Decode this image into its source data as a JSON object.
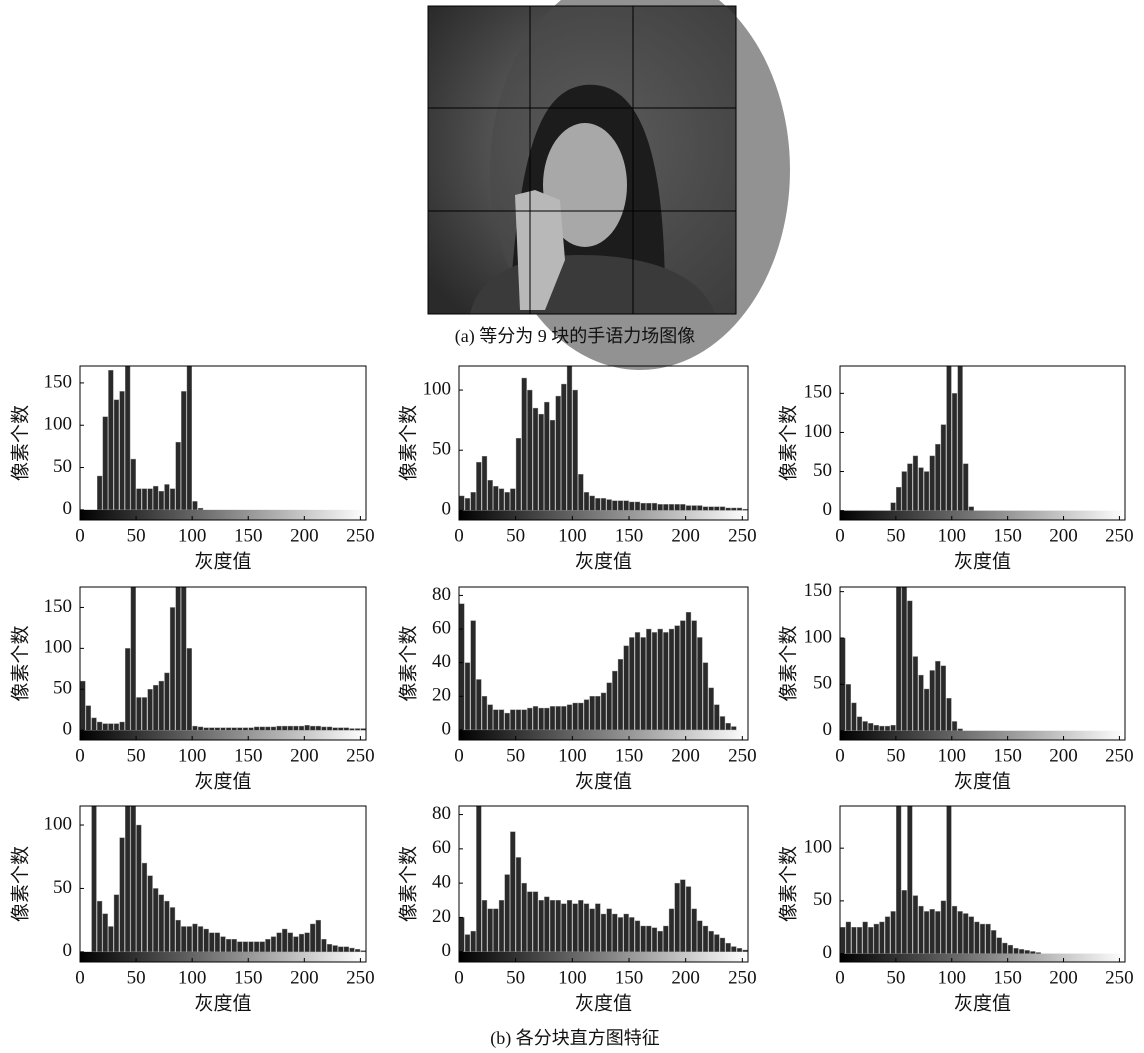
{
  "image_caption": "(a) 等分为 9 块的手语力场图像",
  "figure_caption": "(b) 各分块直方图特征",
  "chart_data": [
    {
      "type": "histogram",
      "ylabel": "像素个数",
      "xlabel": "灰度值",
      "color": "#2a2a2a",
      "xlim": [
        0,
        255
      ],
      "xticks": [
        0,
        50,
        100,
        150,
        200,
        250
      ],
      "ylim": [
        -12,
        170
      ],
      "yticks": [
        0,
        50,
        100,
        150
      ],
      "bins": [
        0,
        5,
        10,
        15,
        20,
        25,
        30,
        35,
        40,
        45,
        50,
        55,
        60,
        65,
        70,
        75,
        80,
        85,
        90,
        95,
        100,
        105,
        110,
        115,
        120,
        125,
        130,
        135,
        140,
        145,
        150,
        155,
        160,
        165,
        170,
        175,
        180,
        185,
        190,
        195,
        200,
        205,
        210,
        215,
        220,
        225,
        230,
        235,
        240,
        245,
        250,
        255
      ],
      "values": [
        0,
        0,
        0,
        40,
        110,
        165,
        130,
        140,
        170,
        60,
        25,
        25,
        25,
        28,
        22,
        30,
        25,
        80,
        140,
        170,
        10,
        2,
        0,
        0,
        0,
        0,
        0,
        0,
        0,
        0,
        0,
        0,
        0,
        0,
        0,
        0,
        0,
        0,
        0,
        0,
        0,
        0,
        0,
        0,
        0,
        0,
        0,
        0,
        0,
        0,
        0
      ]
    },
    {
      "type": "histogram",
      "ylabel": "像素个数",
      "xlabel": "灰度值",
      "color": "#2a2a2a",
      "xlim": [
        0,
        255
      ],
      "xticks": [
        0,
        50,
        100,
        150,
        200,
        250
      ],
      "ylim": [
        -8,
        120
      ],
      "yticks": [
        0,
        50,
        100
      ],
      "bins": [
        0,
        5,
        10,
        15,
        20,
        25,
        30,
        35,
        40,
        45,
        50,
        55,
        60,
        65,
        70,
        75,
        80,
        85,
        90,
        95,
        100,
        105,
        110,
        115,
        120,
        125,
        130,
        135,
        140,
        145,
        150,
        155,
        160,
        165,
        170,
        175,
        180,
        185,
        190,
        195,
        200,
        205,
        210,
        215,
        220,
        225,
        230,
        235,
        240,
        245,
        250,
        255
      ],
      "values": [
        12,
        10,
        15,
        40,
        45,
        25,
        20,
        18,
        15,
        18,
        60,
        110,
        100,
        85,
        80,
        90,
        75,
        95,
        105,
        120,
        100,
        30,
        15,
        12,
        10,
        10,
        9,
        8,
        8,
        8,
        7,
        7,
        6,
        6,
        6,
        5,
        5,
        5,
        5,
        5,
        4,
        4,
        4,
        3,
        3,
        3,
        3,
        2,
        2,
        2,
        1
      ]
    },
    {
      "type": "histogram",
      "ylabel": "像素个数",
      "xlabel": "灰度值",
      "color": "#2a2a2a",
      "xlim": [
        0,
        255
      ],
      "xticks": [
        0,
        50,
        100,
        150,
        200,
        250
      ],
      "ylim": [
        -12,
        185
      ],
      "yticks": [
        0,
        50,
        100,
        150
      ],
      "bins": [
        0,
        5,
        10,
        15,
        20,
        25,
        30,
        35,
        40,
        45,
        50,
        55,
        60,
        65,
        70,
        75,
        80,
        85,
        90,
        95,
        100,
        105,
        110,
        115,
        120,
        125,
        130,
        135,
        140,
        145,
        150,
        155,
        160,
        165,
        170,
        175,
        180,
        185,
        190,
        195,
        200,
        205,
        210,
        215,
        220,
        225,
        230,
        235,
        240,
        245,
        250,
        255
      ],
      "values": [
        0,
        0,
        0,
        0,
        0,
        0,
        0,
        0,
        0,
        10,
        30,
        50,
        60,
        70,
        55,
        50,
        70,
        85,
        110,
        185,
        150,
        185,
        60,
        5,
        0,
        0,
        0,
        0,
        0,
        0,
        0,
        0,
        0,
        0,
        0,
        0,
        0,
        0,
        0,
        0,
        0,
        0,
        0,
        0,
        0,
        0,
        0,
        0,
        0,
        0,
        0
      ]
    },
    {
      "type": "histogram",
      "ylabel": "像素个数",
      "xlabel": "灰度值",
      "color": "#2a2a2a",
      "xlim": [
        0,
        255
      ],
      "xticks": [
        0,
        50,
        100,
        150,
        200,
        250
      ],
      "ylim": [
        -12,
        175
      ],
      "yticks": [
        0,
        50,
        100,
        150
      ],
      "bins": [
        0,
        5,
        10,
        15,
        20,
        25,
        30,
        35,
        40,
        45,
        50,
        55,
        60,
        65,
        70,
        75,
        80,
        85,
        90,
        95,
        100,
        105,
        110,
        115,
        120,
        125,
        130,
        135,
        140,
        145,
        150,
        155,
        160,
        165,
        170,
        175,
        180,
        185,
        190,
        195,
        200,
        205,
        210,
        215,
        220,
        225,
        230,
        235,
        240,
        245,
        250,
        255
      ],
      "values": [
        60,
        30,
        15,
        10,
        8,
        8,
        8,
        10,
        100,
        175,
        40,
        40,
        50,
        55,
        60,
        70,
        150,
        175,
        175,
        100,
        5,
        4,
        3,
        3,
        3,
        3,
        3,
        3,
        3,
        3,
        3,
        4,
        4,
        4,
        4,
        5,
        5,
        5,
        5,
        5,
        6,
        5,
        5,
        4,
        4,
        3,
        3,
        3,
        2,
        2,
        2
      ]
    },
    {
      "type": "histogram",
      "ylabel": "像素个数",
      "xlabel": "灰度值",
      "color": "#2a2a2a",
      "xlim": [
        0,
        255
      ],
      "xticks": [
        0,
        50,
        100,
        150,
        200,
        250
      ],
      "ylim": [
        -6,
        85
      ],
      "yticks": [
        0,
        20,
        40,
        60,
        80
      ],
      "bins": [
        0,
        5,
        10,
        15,
        20,
        25,
        30,
        35,
        40,
        45,
        50,
        55,
        60,
        65,
        70,
        75,
        80,
        85,
        90,
        95,
        100,
        105,
        110,
        115,
        120,
        125,
        130,
        135,
        140,
        145,
        150,
        155,
        160,
        165,
        170,
        175,
        180,
        185,
        190,
        195,
        200,
        205,
        210,
        215,
        220,
        225,
        230,
        235,
        240,
        245,
        250,
        255
      ],
      "values": [
        75,
        40,
        65,
        30,
        20,
        15,
        12,
        12,
        10,
        12,
        12,
        12,
        13,
        14,
        13,
        13,
        14,
        14,
        14,
        15,
        16,
        16,
        18,
        20,
        20,
        22,
        28,
        35,
        42,
        50,
        55,
        58,
        55,
        60,
        58,
        60,
        58,
        60,
        62,
        65,
        70,
        65,
        55,
        40,
        25,
        15,
        8,
        4,
        2,
        0,
        0
      ]
    },
    {
      "type": "histogram",
      "ylabel": "像素个数",
      "xlabel": "灰度值",
      "color": "#2a2a2a",
      "xlim": [
        0,
        255
      ],
      "xticks": [
        0,
        50,
        100,
        150,
        200,
        250
      ],
      "ylim": [
        -10,
        155
      ],
      "yticks": [
        0,
        50,
        100,
        150
      ],
      "bins": [
        0,
        5,
        10,
        15,
        20,
        25,
        30,
        35,
        40,
        45,
        50,
        55,
        60,
        65,
        70,
        75,
        80,
        85,
        90,
        95,
        100,
        105,
        110,
        115,
        120,
        125,
        130,
        135,
        140,
        145,
        150,
        155,
        160,
        165,
        170,
        175,
        180,
        185,
        190,
        195,
        200,
        205,
        210,
        215,
        220,
        225,
        230,
        235,
        240,
        245,
        250,
        255
      ],
      "values": [
        100,
        50,
        30,
        15,
        10,
        8,
        6,
        5,
        5,
        6,
        155,
        155,
        140,
        80,
        60,
        45,
        65,
        75,
        70,
        35,
        10,
        2,
        0,
        0,
        0,
        0,
        0,
        0,
        0,
        0,
        0,
        0,
        0,
        0,
        0,
        0,
        0,
        0,
        0,
        0,
        0,
        0,
        0,
        0,
        0,
        0,
        0,
        0,
        0,
        0,
        0
      ]
    },
    {
      "type": "histogram",
      "ylabel": "像素个数",
      "xlabel": "灰度值",
      "color": "#2a2a2a",
      "xlim": [
        0,
        255
      ],
      "xticks": [
        0,
        50,
        100,
        150,
        200,
        250
      ],
      "ylim": [
        -8,
        115
      ],
      "yticks": [
        0,
        50,
        100
      ],
      "bins": [
        0,
        5,
        10,
        15,
        20,
        25,
        30,
        35,
        40,
        45,
        50,
        55,
        60,
        65,
        70,
        75,
        80,
        85,
        90,
        95,
        100,
        105,
        110,
        115,
        120,
        125,
        130,
        135,
        140,
        145,
        150,
        155,
        160,
        165,
        170,
        175,
        180,
        185,
        190,
        195,
        200,
        205,
        210,
        215,
        220,
        225,
        230,
        235,
        240,
        245,
        250,
        255
      ],
      "values": [
        0,
        0,
        115,
        40,
        30,
        20,
        45,
        90,
        115,
        115,
        100,
        70,
        60,
        50,
        45,
        40,
        35,
        25,
        20,
        20,
        22,
        20,
        18,
        15,
        15,
        12,
        10,
        10,
        8,
        8,
        8,
        8,
        8,
        10,
        12,
        15,
        18,
        15,
        12,
        14,
        15,
        22,
        25,
        10,
        6,
        5,
        4,
        4,
        3,
        2,
        1
      ]
    },
    {
      "type": "histogram",
      "ylabel": "像素个数",
      "xlabel": "灰度值",
      "color": "#2a2a2a",
      "xlim": [
        0,
        255
      ],
      "xticks": [
        0,
        50,
        100,
        150,
        200,
        250
      ],
      "ylim": [
        -6,
        85
      ],
      "yticks": [
        0,
        20,
        40,
        60,
        80
      ],
      "bins": [
        0,
        5,
        10,
        15,
        20,
        25,
        30,
        35,
        40,
        45,
        50,
        55,
        60,
        65,
        70,
        75,
        80,
        85,
        90,
        95,
        100,
        105,
        110,
        115,
        120,
        125,
        130,
        135,
        140,
        145,
        150,
        155,
        160,
        165,
        170,
        175,
        180,
        185,
        190,
        195,
        200,
        205,
        210,
        215,
        220,
        225,
        230,
        235,
        240,
        245,
        250,
        255
      ],
      "values": [
        20,
        10,
        12,
        85,
        30,
        25,
        25,
        30,
        45,
        70,
        55,
        40,
        35,
        35,
        30,
        32,
        30,
        30,
        28,
        30,
        28,
        30,
        28,
        25,
        28,
        22,
        25,
        22,
        20,
        22,
        20,
        18,
        15,
        15,
        14,
        12,
        15,
        25,
        40,
        42,
        38,
        25,
        18,
        15,
        12,
        10,
        8,
        5,
        3,
        2,
        1
      ]
    },
    {
      "type": "histogram",
      "ylabel": "像素个数",
      "xlabel": "灰度值",
      "color": "#2a2a2a",
      "xlim": [
        0,
        255
      ],
      "xticks": [
        0,
        50,
        100,
        150,
        200,
        250
      ],
      "ylim": [
        -8,
        140
      ],
      "yticks": [
        0,
        50,
        100
      ],
      "bins": [
        0,
        5,
        10,
        15,
        20,
        25,
        30,
        35,
        40,
        45,
        50,
        55,
        60,
        65,
        70,
        75,
        80,
        85,
        90,
        95,
        100,
        105,
        110,
        115,
        120,
        125,
        130,
        135,
        140,
        145,
        150,
        155,
        160,
        165,
        170,
        175,
        180,
        185,
        190,
        195,
        200,
        205,
        210,
        215,
        220,
        225,
        230,
        235,
        240,
        245,
        250,
        255
      ],
      "values": [
        25,
        30,
        25,
        25,
        30,
        25,
        28,
        30,
        35,
        40,
        140,
        60,
        140,
        55,
        45,
        40,
        42,
        40,
        50,
        140,
        45,
        40,
        38,
        35,
        30,
        28,
        28,
        22,
        15,
        10,
        8,
        5,
        4,
        3,
        2,
        1,
        0,
        0,
        0,
        0,
        0,
        0,
        0,
        0,
        0,
        0,
        0,
        0,
        0,
        0,
        0
      ]
    }
  ]
}
